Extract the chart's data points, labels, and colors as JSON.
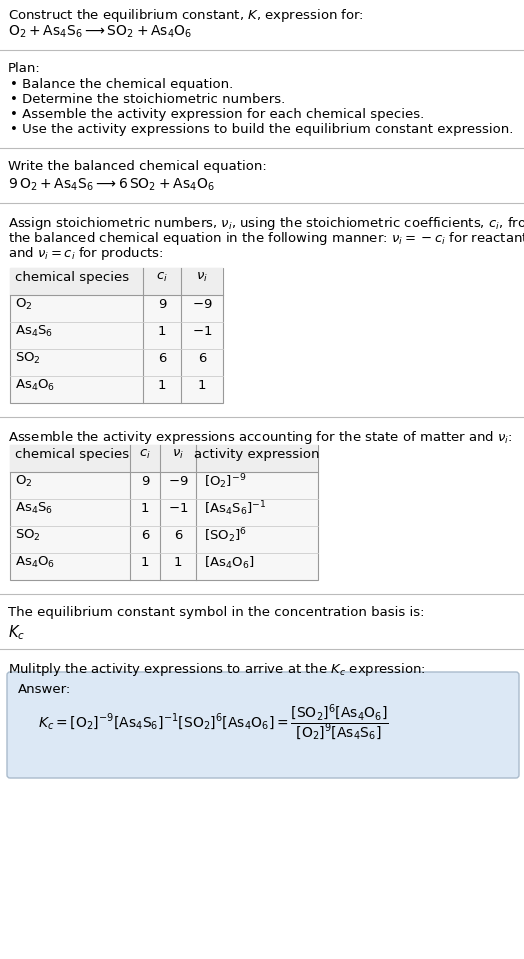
{
  "title_line1": "Construct the equilibrium constant, $K$, expression for:",
  "title_line2": "$\\mathrm{O_2 + As_4S_6 \\longrightarrow SO_2 + As_4O_6}$",
  "plan_header": "Plan:",
  "plan_items": [
    "• Balance the chemical equation.",
    "• Determine the stoichiometric numbers.",
    "• Assemble the activity expression for each chemical species.",
    "• Use the activity expressions to build the equilibrium constant expression."
  ],
  "balanced_header": "Write the balanced chemical equation:",
  "balanced_eq": "$9\\,\\mathrm{O_2} + \\mathrm{As_4S_6} \\longrightarrow 6\\,\\mathrm{SO_2} + \\mathrm{As_4O_6}$",
  "table1_headers": [
    "chemical species",
    "$c_i$",
    "$\\nu_i$"
  ],
  "table1_rows": [
    [
      "$\\mathrm{O_2}$",
      "9",
      "$-9$"
    ],
    [
      "$\\mathrm{As_4S_6}$",
      "1",
      "$-1$"
    ],
    [
      "$\\mathrm{SO_2}$",
      "6",
      "6"
    ],
    [
      "$\\mathrm{As_4O_6}$",
      "1",
      "1"
    ]
  ],
  "activity_header": "Assemble the activity expressions accounting for the state of matter and $\\nu_i$:",
  "table2_headers": [
    "chemical species",
    "$c_i$",
    "$\\nu_i$",
    "activity expression"
  ],
  "table2_rows": [
    [
      "$\\mathrm{O_2}$",
      "9",
      "$-9$",
      "$[\\mathrm{O_2}]^{-9}$"
    ],
    [
      "$\\mathrm{As_4S_6}$",
      "1",
      "$-1$",
      "$[\\mathrm{As_4S_6}]^{-1}$"
    ],
    [
      "$\\mathrm{SO_2}$",
      "6",
      "6",
      "$[\\mathrm{SO_2}]^{6}$"
    ],
    [
      "$\\mathrm{As_4O_6}$",
      "1",
      "1",
      "$[\\mathrm{As_4O_6}]$"
    ]
  ],
  "kc_header": "The equilibrium constant symbol in the concentration basis is:",
  "kc_symbol": "$K_c$",
  "multiply_header": "Mulitply the activity expressions to arrive at the $K_c$ expression:",
  "answer_label": "Answer:",
  "stoich_lines": [
    "Assign stoichiometric numbers, $\\nu_i$, using the stoichiometric coefficients, $c_i$, from",
    "the balanced chemical equation in the following manner: $\\nu_i = -c_i$ for reactants",
    "and $\\nu_i = c_i$ for products:"
  ],
  "bg_color": "#ffffff",
  "answer_bg": "#dce8f5",
  "separator_color": "#cccccc",
  "font_size": 9.5
}
